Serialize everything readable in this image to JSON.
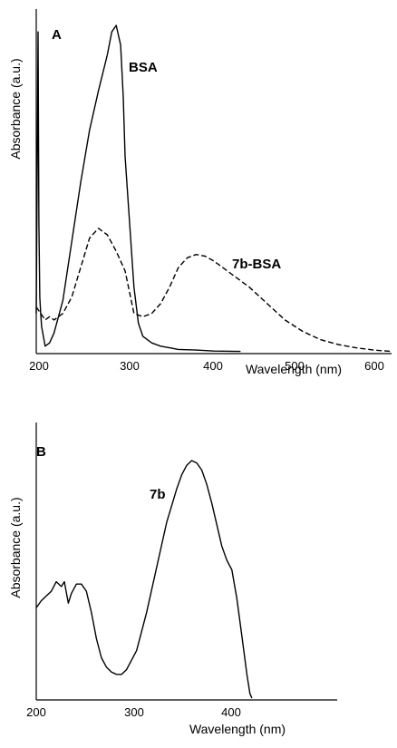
{
  "chart_data": [
    {
      "type": "line",
      "panel_label": "A",
      "xlabel": "Wavelength (nm)",
      "ylabel": "Absorbance (a.u.)",
      "xlim": [
        200,
        600
      ],
      "ylim": [
        0,
        1
      ],
      "x_ticks": [
        200,
        300,
        400,
        500,
        600
      ],
      "grid": false,
      "series": [
        {
          "name": "BSA",
          "style": "solid",
          "x": [
            200,
            201,
            202,
            203,
            204,
            205,
            206,
            210,
            215,
            220,
            225,
            230,
            240,
            250,
            260,
            270,
            280,
            285,
            290,
            295,
            298,
            300,
            305,
            310,
            315,
            320,
            330,
            340,
            350,
            360,
            380,
            400,
            430
          ],
          "y": [
            0.12,
            0.55,
            0.98,
            0.4,
            0.17,
            0.12,
            0.08,
            0.02,
            0.03,
            0.06,
            0.11,
            0.16,
            0.34,
            0.52,
            0.68,
            0.8,
            0.91,
            0.98,
            1.0,
            0.94,
            0.78,
            0.6,
            0.4,
            0.2,
            0.09,
            0.05,
            0.03,
            0.02,
            0.015,
            0.01,
            0.008,
            0.005,
            0.004
          ]
        },
        {
          "name": "7b-BSA",
          "style": "dashed",
          "x": [
            200,
            205,
            210,
            215,
            220,
            225,
            230,
            240,
            250,
            260,
            270,
            280,
            290,
            300,
            310,
            320,
            330,
            340,
            350,
            360,
            370,
            380,
            390,
            400,
            420,
            440,
            460,
            480,
            500,
            520,
            540,
            560,
            580,
            600
          ],
          "y": [
            0.14,
            0.12,
            0.1,
            0.11,
            0.1,
            0.11,
            0.12,
            0.17,
            0.26,
            0.35,
            0.38,
            0.36,
            0.31,
            0.25,
            0.12,
            0.11,
            0.12,
            0.15,
            0.2,
            0.26,
            0.29,
            0.3,
            0.295,
            0.28,
            0.24,
            0.2,
            0.15,
            0.1,
            0.065,
            0.04,
            0.025,
            0.015,
            0.008,
            0.004
          ]
        }
      ],
      "annotations": [
        "BSA",
        "7b-BSA"
      ]
    },
    {
      "type": "line",
      "panel_label": "B",
      "xlabel": "Wavelength (nm)",
      "ylabel": "Absorbance (a.u.)",
      "xlim": [
        200,
        500
      ],
      "ylim": [
        0,
        1
      ],
      "x_ticks": [
        200,
        300,
        400
      ],
      "grid": false,
      "series": [
        {
          "name": "7b",
          "style": "solid",
          "x": [
            200,
            205,
            210,
            215,
            220,
            225,
            228,
            232,
            235,
            240,
            245,
            250,
            255,
            260,
            265,
            270,
            275,
            280,
            285,
            290,
            300,
            310,
            320,
            330,
            340,
            345,
            350,
            355,
            360,
            365,
            370,
            375,
            380,
            385,
            390,
            395,
            400,
            405,
            410,
            413,
            415
          ],
          "y": [
            0.38,
            0.41,
            0.43,
            0.45,
            0.49,
            0.47,
            0.49,
            0.4,
            0.44,
            0.48,
            0.48,
            0.45,
            0.36,
            0.25,
            0.17,
            0.13,
            0.11,
            0.1,
            0.1,
            0.12,
            0.2,
            0.36,
            0.55,
            0.74,
            0.88,
            0.94,
            0.98,
            1.0,
            0.99,
            0.96,
            0.9,
            0.82,
            0.73,
            0.64,
            0.58,
            0.54,
            0.42,
            0.26,
            0.1,
            0.02,
            0.0
          ]
        }
      ],
      "annotations": [
        "7b"
      ]
    }
  ]
}
